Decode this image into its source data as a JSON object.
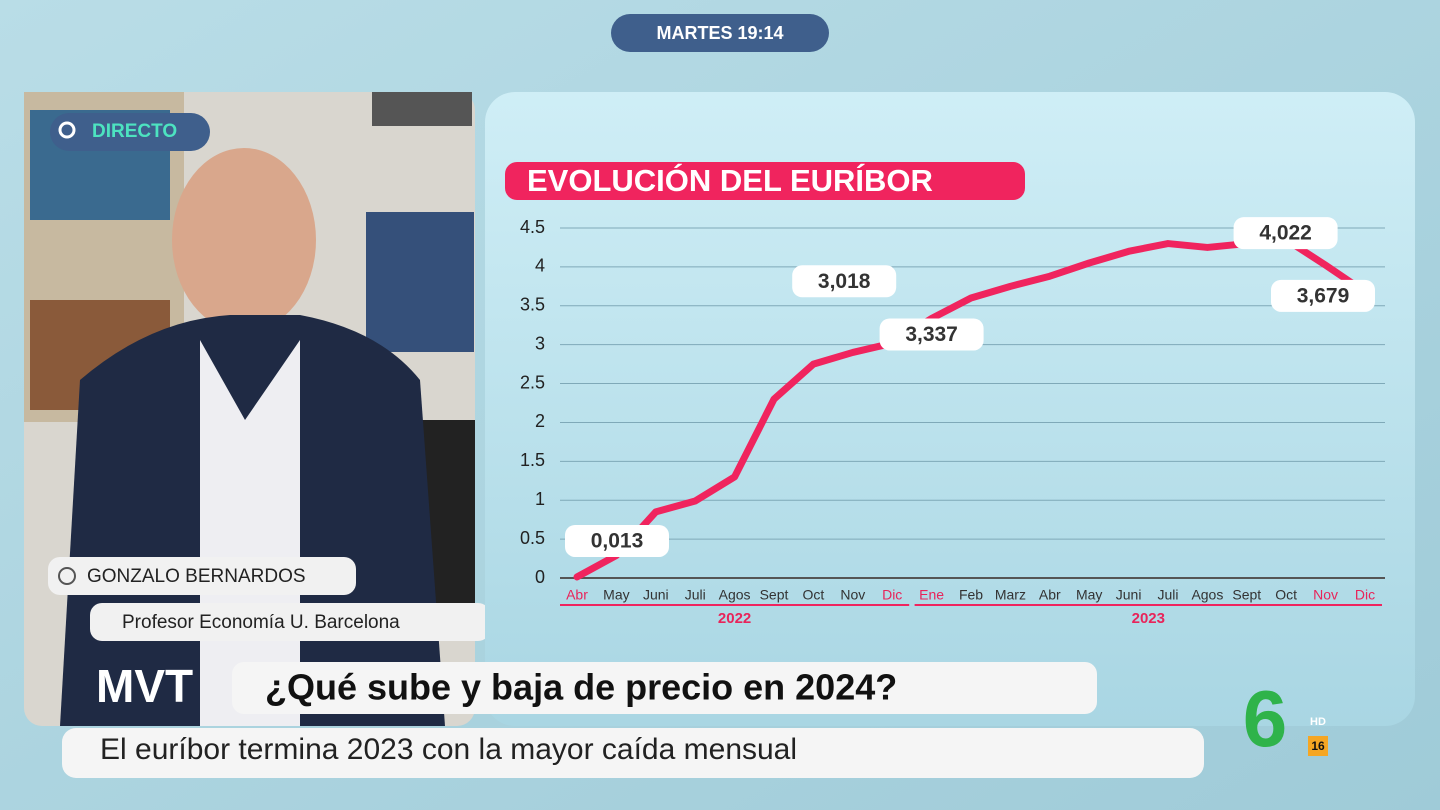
{
  "overlay": {
    "time": "MARTES 19:14",
    "live": "DIRECTO",
    "guest_name": "GONZALO BERNARDOS",
    "guest_role": "Profesor Economía U. Barcelona",
    "show_logo": "MVT",
    "headline": "¿Qué sube y baja de precio en 2024?",
    "ticker": "El euríbor termina 2023 con la mayor caída mensual",
    "channel": "6",
    "hd": "HD",
    "rating": "16"
  },
  "chart_data": {
    "type": "line",
    "title": "EVOLUCIÓN DEL EURÍBOR",
    "categories": [
      "Abr",
      "May",
      "Juni",
      "Juli",
      "Agos",
      "Sept",
      "Oct",
      "Nov",
      "Dic",
      "Ene",
      "Feb",
      "Marz",
      "Abr",
      "May",
      "Juni",
      "Juli",
      "Agos",
      "Sept",
      "Oct",
      "Nov",
      "Dic"
    ],
    "category_colors": [
      "#e8245a",
      "#333",
      "#333",
      "#333",
      "#333",
      "#333",
      "#333",
      "#333",
      "#e8245a",
      "#e8245a",
      "#333",
      "#333",
      "#333",
      "#333",
      "#333",
      "#333",
      "#333",
      "#333",
      "#333",
      "#e8245a",
      "#e8245a"
    ],
    "groups": [
      {
        "label": "2022",
        "size": 9
      },
      {
        "label": "2023",
        "size": 12
      }
    ],
    "values": [
      0.013,
      0.29,
      0.85,
      0.99,
      1.3,
      2.3,
      2.75,
      2.9,
      3.018,
      3.337,
      3.6,
      3.75,
      3.88,
      4.05,
      4.2,
      4.3,
      4.25,
      4.3,
      4.35,
      4.022,
      3.679
    ],
    "value_labels": [
      "0,013",
      null,
      null,
      null,
      null,
      null,
      null,
      null,
      "3,018",
      "3,337",
      null,
      null,
      null,
      null,
      null,
      null,
      null,
      null,
      null,
      "4,022",
      "3,679"
    ],
    "color": "#f0245e",
    "ylim": [
      0,
      4.5
    ],
    "yticks": [
      0,
      0.5,
      1,
      1.5,
      2,
      2.5,
      3,
      3.5,
      4,
      4.5
    ],
    "grid": true
  }
}
